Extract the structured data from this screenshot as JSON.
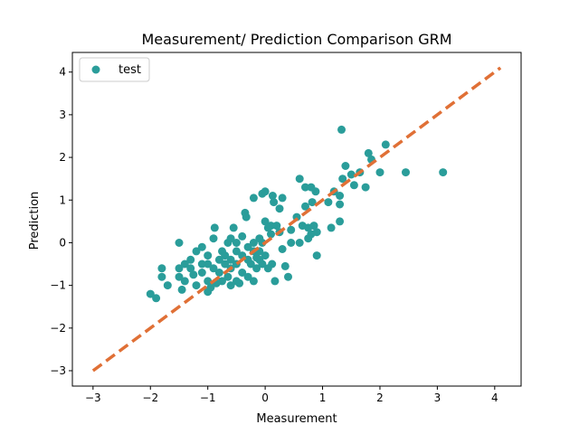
{
  "chart_data": {
    "type": "scatter",
    "title": "Measurement/ Prediction Comparison GRM",
    "xlabel": "Measurement",
    "ylabel": "Prediction",
    "xlim": [
      -3.36,
      4.46
    ],
    "ylim": [
      -3.36,
      4.46
    ],
    "xticks": [
      -3,
      -2,
      -1,
      0,
      1,
      2,
      3,
      4
    ],
    "yticks": [
      -3,
      -2,
      -1,
      0,
      1,
      2,
      3,
      4
    ],
    "xtick_labels": [
      "−3",
      "−2",
      "−1",
      "0",
      "1",
      "2",
      "3",
      "4"
    ],
    "ytick_labels": [
      "−3",
      "−2",
      "−1",
      "0",
      "1",
      "2",
      "3",
      "4"
    ],
    "grid": false,
    "legend_position": "top-left",
    "series": [
      {
        "name": "test",
        "color": "#2a9d9a",
        "points": [
          [
            -2.0,
            -1.2
          ],
          [
            -1.9,
            -1.3
          ],
          [
            -1.8,
            -0.8
          ],
          [
            -1.8,
            -0.6
          ],
          [
            -1.7,
            -1.0
          ],
          [
            -1.5,
            -0.8
          ],
          [
            -1.5,
            -0.6
          ],
          [
            -1.5,
            0.0
          ],
          [
            -1.45,
            -1.1
          ],
          [
            -1.4,
            -0.9
          ],
          [
            -1.4,
            -0.5
          ],
          [
            -1.3,
            -0.6
          ],
          [
            -1.3,
            -0.4
          ],
          [
            -1.25,
            -0.75
          ],
          [
            -1.2,
            -1.0
          ],
          [
            -1.2,
            -0.2
          ],
          [
            -1.1,
            -0.7
          ],
          [
            -1.1,
            -0.5
          ],
          [
            -1.1,
            -0.1
          ],
          [
            -1.0,
            -1.15
          ],
          [
            -1.0,
            -0.9
          ],
          [
            -1.0,
            -0.5
          ],
          [
            -1.0,
            -0.3
          ],
          [
            -0.95,
            -1.05
          ],
          [
            -0.9,
            -0.6
          ],
          [
            -0.9,
            0.1
          ],
          [
            -0.88,
            0.35
          ],
          [
            -0.85,
            -0.95
          ],
          [
            -0.8,
            -0.4
          ],
          [
            -0.8,
            -0.7
          ],
          [
            -0.75,
            -0.9
          ],
          [
            -0.75,
            -0.2
          ],
          [
            -0.7,
            -0.5
          ],
          [
            -0.7,
            -0.3
          ],
          [
            -0.65,
            -0.8
          ],
          [
            -0.65,
            0.0
          ],
          [
            -0.6,
            -1.0
          ],
          [
            -0.6,
            -0.6
          ],
          [
            -0.6,
            -0.4
          ],
          [
            -0.6,
            0.1
          ],
          [
            -0.55,
            0.35
          ],
          [
            -0.5,
            -0.9
          ],
          [
            -0.5,
            -0.5
          ],
          [
            -0.5,
            -0.2
          ],
          [
            -0.5,
            0.0
          ],
          [
            -0.45,
            -0.95
          ],
          [
            -0.4,
            -0.7
          ],
          [
            -0.4,
            -0.3
          ],
          [
            -0.4,
            0.15
          ],
          [
            -0.35,
            0.7
          ],
          [
            -0.33,
            0.6
          ],
          [
            -0.3,
            -0.8
          ],
          [
            -0.3,
            -0.4
          ],
          [
            -0.3,
            -0.1
          ],
          [
            -0.25,
            -0.5
          ],
          [
            -0.2,
            -0.9
          ],
          [
            -0.2,
            -0.2
          ],
          [
            -0.2,
            0.0
          ],
          [
            -0.2,
            1.05
          ],
          [
            -0.15,
            -0.6
          ],
          [
            -0.15,
            -0.35
          ],
          [
            -0.1,
            -0.4
          ],
          [
            -0.1,
            -0.2
          ],
          [
            -0.1,
            0.1
          ],
          [
            -0.05,
            -0.5
          ],
          [
            -0.05,
            0.0
          ],
          [
            -0.05,
            1.15
          ],
          [
            0.0,
            -0.3
          ],
          [
            0.0,
            0.5
          ],
          [
            0.0,
            1.2
          ],
          [
            0.05,
            -0.6
          ],
          [
            0.05,
            0.35
          ],
          [
            0.1,
            0.2
          ],
          [
            0.1,
            0.4
          ],
          [
            0.12,
            -0.5
          ],
          [
            0.13,
            1.1
          ],
          [
            0.15,
            0.95
          ],
          [
            0.17,
            -0.9
          ],
          [
            0.2,
            0.4
          ],
          [
            0.25,
            0.25
          ],
          [
            0.25,
            0.8
          ],
          [
            0.3,
            1.05
          ],
          [
            0.3,
            -0.15
          ],
          [
            0.35,
            -0.55
          ],
          [
            0.4,
            -0.8
          ],
          [
            0.45,
            0.0
          ],
          [
            0.45,
            0.3
          ],
          [
            0.55,
            0.6
          ],
          [
            0.6,
            0.0
          ],
          [
            0.6,
            1.5
          ],
          [
            0.65,
            0.4
          ],
          [
            0.7,
            0.85
          ],
          [
            0.7,
            1.3
          ],
          [
            0.75,
            0.35
          ],
          [
            0.75,
            0.1
          ],
          [
            0.8,
            0.2
          ],
          [
            0.8,
            1.3
          ],
          [
            0.82,
            0.95
          ],
          [
            0.85,
            0.4
          ],
          [
            0.88,
            1.2
          ],
          [
            0.9,
            -0.3
          ],
          [
            0.9,
            0.25
          ],
          [
            1.1,
            0.95
          ],
          [
            1.15,
            0.35
          ],
          [
            1.2,
            1.2
          ],
          [
            1.3,
            0.5
          ],
          [
            1.3,
            1.1
          ],
          [
            1.3,
            0.9
          ],
          [
            1.35,
            1.5
          ],
          [
            1.4,
            1.8
          ],
          [
            1.5,
            1.6
          ],
          [
            1.55,
            1.35
          ],
          [
            1.65,
            1.65
          ],
          [
            1.75,
            1.3
          ],
          [
            1.8,
            2.1
          ],
          [
            1.85,
            1.95
          ],
          [
            2.0,
            1.65
          ],
          [
            2.1,
            2.3
          ],
          [
            2.45,
            1.65
          ],
          [
            3.1,
            1.65
          ],
          [
            1.33,
            2.65
          ]
        ]
      },
      {
        "name": "",
        "kind": "reference-line",
        "color": "#e07036",
        "x": [
          -3.0,
          4.1
        ],
        "y": [
          -3.0,
          4.1
        ]
      }
    ]
  }
}
